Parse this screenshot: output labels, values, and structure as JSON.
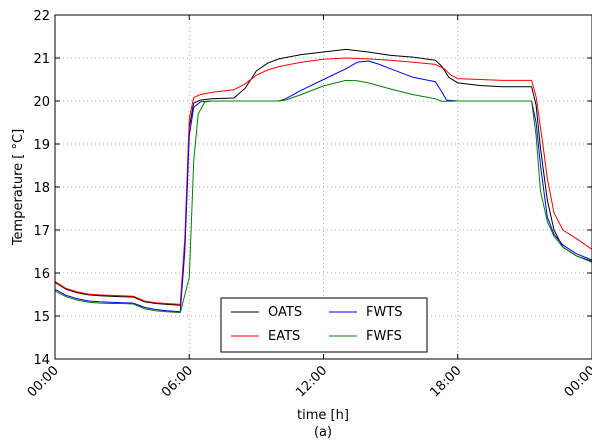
{
  "chart_data": {
    "type": "line",
    "title": "",
    "xlabel": "time [h]",
    "ylabel": "Temperature [$^\\circ$C]",
    "ylabel_display": "Temperature [ °C]",
    "caption": "(a)",
    "xlim": [
      0,
      24
    ],
    "ylim": [
      14,
      22
    ],
    "grid": true,
    "legend_position": "lower-center",
    "legend_columns": 2,
    "x_ticks": [
      0,
      6,
      12,
      18,
      24
    ],
    "x_tick_labels": [
      "00:00",
      "06:00",
      "12:00",
      "18:00",
      "00:00"
    ],
    "y_ticks": [
      14,
      15,
      16,
      17,
      18,
      19,
      20,
      21,
      22
    ],
    "y_tick_labels": [
      "14",
      "15",
      "16",
      "17",
      "18",
      "19",
      "20",
      "21",
      "22"
    ],
    "series": [
      {
        "name": "OATS",
        "color": "#000000",
        "points": [
          [
            0,
            15.78
          ],
          [
            0.5,
            15.62
          ],
          [
            1,
            15.54
          ],
          [
            1.5,
            15.49
          ],
          [
            2,
            15.47
          ],
          [
            2.5,
            15.46
          ],
          [
            3,
            15.45
          ],
          [
            3.5,
            15.44
          ],
          [
            4,
            15.33
          ],
          [
            4.5,
            15.29
          ],
          [
            5,
            15.27
          ],
          [
            5.6,
            15.25
          ],
          [
            5.8,
            16.6
          ],
          [
            6.0,
            19.4
          ],
          [
            6.2,
            19.95
          ],
          [
            6.5,
            20.02
          ],
          [
            7,
            20.05
          ],
          [
            8,
            20.07
          ],
          [
            8.5,
            20.3
          ],
          [
            9,
            20.7
          ],
          [
            9.5,
            20.88
          ],
          [
            10,
            20.98
          ],
          [
            11,
            21.08
          ],
          [
            12,
            21.14
          ],
          [
            13,
            21.2
          ],
          [
            14,
            21.14
          ],
          [
            15,
            21.06
          ],
          [
            16,
            21.02
          ],
          [
            17,
            20.95
          ],
          [
            17.3,
            20.8
          ],
          [
            17.6,
            20.55
          ],
          [
            18,
            20.42
          ],
          [
            19,
            20.36
          ],
          [
            20,
            20.33
          ],
          [
            21,
            20.33
          ],
          [
            21.3,
            20.33
          ],
          [
            21.5,
            19.9
          ],
          [
            21.7,
            18.9
          ],
          [
            22,
            17.7
          ],
          [
            22.3,
            17.0
          ],
          [
            22.7,
            16.6
          ],
          [
            23.3,
            16.4
          ],
          [
            24,
            16.27
          ]
        ]
      },
      {
        "name": "EATS",
        "color": "#ff0000",
        "points": [
          [
            0,
            15.8
          ],
          [
            0.5,
            15.64
          ],
          [
            1,
            15.56
          ],
          [
            1.5,
            15.51
          ],
          [
            2,
            15.49
          ],
          [
            2.5,
            15.48
          ],
          [
            3,
            15.47
          ],
          [
            3.5,
            15.46
          ],
          [
            4,
            15.35
          ],
          [
            4.5,
            15.31
          ],
          [
            5,
            15.29
          ],
          [
            5.6,
            15.27
          ],
          [
            5.8,
            16.8
          ],
          [
            6.0,
            19.6
          ],
          [
            6.2,
            20.08
          ],
          [
            6.5,
            20.15
          ],
          [
            7,
            20.2
          ],
          [
            8,
            20.26
          ],
          [
            8.5,
            20.4
          ],
          [
            9,
            20.6
          ],
          [
            9.5,
            20.72
          ],
          [
            10,
            20.8
          ],
          [
            11,
            20.9
          ],
          [
            12,
            20.97
          ],
          [
            13,
            21.0
          ],
          [
            14,
            20.98
          ],
          [
            15,
            20.95
          ],
          [
            16,
            20.9
          ],
          [
            17,
            20.85
          ],
          [
            17.4,
            20.75
          ],
          [
            17.7,
            20.6
          ],
          [
            18,
            20.52
          ],
          [
            19,
            20.5
          ],
          [
            20,
            20.48
          ],
          [
            21,
            20.48
          ],
          [
            21.3,
            20.48
          ],
          [
            21.5,
            20.1
          ],
          [
            21.8,
            19.0
          ],
          [
            22,
            18.2
          ],
          [
            22.3,
            17.4
          ],
          [
            22.7,
            17.0
          ],
          [
            23.3,
            16.8
          ],
          [
            24,
            16.55
          ]
        ]
      },
      {
        "name": "FWTS",
        "color": "#0000ff",
        "points": [
          [
            0,
            15.62
          ],
          [
            0.5,
            15.48
          ],
          [
            1,
            15.4
          ],
          [
            1.5,
            15.35
          ],
          [
            2,
            15.33
          ],
          [
            2.5,
            15.32
          ],
          [
            3,
            15.31
          ],
          [
            3.5,
            15.3
          ],
          [
            4,
            15.2
          ],
          [
            4.5,
            15.15
          ],
          [
            5,
            15.12
          ],
          [
            5.6,
            15.1
          ],
          [
            5.8,
            16.5
          ],
          [
            6.0,
            19.2
          ],
          [
            6.2,
            19.85
          ],
          [
            6.5,
            19.98
          ],
          [
            7,
            20.0
          ],
          [
            9,
            20.0
          ],
          [
            10,
            20.0
          ],
          [
            10.3,
            20.05
          ],
          [
            11,
            20.25
          ],
          [
            12,
            20.5
          ],
          [
            13,
            20.75
          ],
          [
            13.5,
            20.9
          ],
          [
            14,
            20.93
          ],
          [
            14.5,
            20.85
          ],
          [
            15,
            20.75
          ],
          [
            16,
            20.55
          ],
          [
            17,
            20.45
          ],
          [
            17.3,
            20.2
          ],
          [
            17.5,
            20.02
          ],
          [
            18,
            20.0
          ],
          [
            21,
            20.0
          ],
          [
            21.3,
            20.0
          ],
          [
            21.5,
            19.5
          ],
          [
            21.7,
            18.5
          ],
          [
            22,
            17.3
          ],
          [
            22.3,
            16.9
          ],
          [
            22.7,
            16.65
          ],
          [
            23.3,
            16.45
          ],
          [
            24,
            16.3
          ]
        ]
      },
      {
        "name": "FWFS",
        "color": "#008000",
        "points": [
          [
            0,
            15.58
          ],
          [
            0.5,
            15.45
          ],
          [
            1,
            15.37
          ],
          [
            1.5,
            15.32
          ],
          [
            2,
            15.3
          ],
          [
            2.5,
            15.29
          ],
          [
            3,
            15.29
          ],
          [
            3.5,
            15.28
          ],
          [
            4,
            15.17
          ],
          [
            4.5,
            15.12
          ],
          [
            5,
            15.1
          ],
          [
            5.6,
            15.08
          ],
          [
            6.0,
            15.9
          ],
          [
            6.2,
            18.6
          ],
          [
            6.4,
            19.7
          ],
          [
            6.7,
            19.98
          ],
          [
            7,
            20.0
          ],
          [
            10,
            20.0
          ],
          [
            10.3,
            20.02
          ],
          [
            11,
            20.15
          ],
          [
            12,
            20.35
          ],
          [
            13,
            20.48
          ],
          [
            13.5,
            20.47
          ],
          [
            14,
            20.42
          ],
          [
            15,
            20.28
          ],
          [
            16,
            20.15
          ],
          [
            17,
            20.05
          ],
          [
            17.3,
            19.99
          ],
          [
            18,
            20.0
          ],
          [
            21,
            20.0
          ],
          [
            21.3,
            20.0
          ],
          [
            21.5,
            19.2
          ],
          [
            21.7,
            17.9
          ],
          [
            22,
            17.2
          ],
          [
            22.3,
            16.85
          ],
          [
            22.7,
            16.6
          ],
          [
            23.3,
            16.4
          ],
          [
            24,
            16.25
          ]
        ]
      }
    ]
  }
}
